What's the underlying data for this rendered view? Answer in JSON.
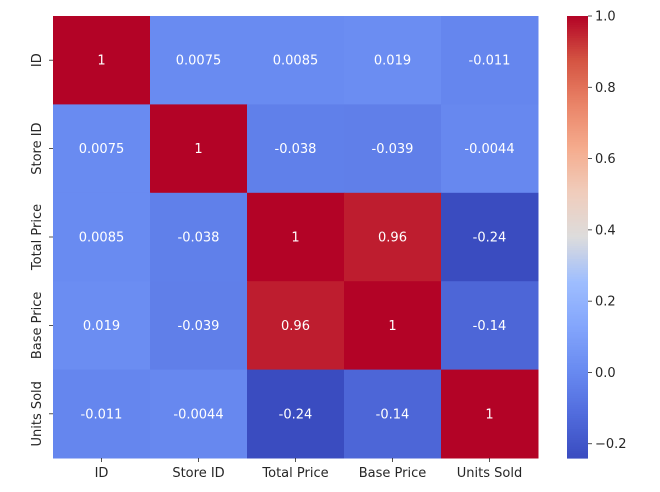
{
  "chart_data": {
    "type": "heatmap",
    "labels": [
      "ID",
      "Store ID",
      "Total Price",
      "Base Price",
      "Units Sold"
    ],
    "matrix": [
      [
        1,
        0.0075,
        0.0085,
        0.019,
        -0.011
      ],
      [
        0.0075,
        1,
        -0.038,
        -0.039,
        -0.0044
      ],
      [
        0.0085,
        -0.038,
        1,
        0.96,
        -0.24
      ],
      [
        0.019,
        -0.039,
        0.96,
        1,
        -0.14
      ],
      [
        -0.011,
        -0.0044,
        -0.24,
        -0.14,
        1
      ]
    ],
    "cell_text": [
      [
        "1",
        "0.0075",
        "0.0085",
        "0.019",
        "-0.011"
      ],
      [
        "0.0075",
        "1",
        "-0.038",
        "-0.039",
        "-0.0044"
      ],
      [
        "0.0085",
        "-0.038",
        "1",
        "0.96",
        "-0.24"
      ],
      [
        "0.019",
        "-0.039",
        "0.96",
        "1",
        "-0.14"
      ],
      [
        "-0.011",
        "-0.0044",
        "-0.24",
        "-0.14",
        "1"
      ]
    ],
    "colormap": "coolwarm",
    "colorbar": {
      "range": [
        -0.24,
        1.0
      ],
      "ticks": [
        -0.2,
        0.0,
        0.2,
        0.4,
        0.6,
        0.8,
        1.0
      ],
      "tick_labels": [
        "−0.2",
        "0.0",
        "0.2",
        "0.4",
        "0.6",
        "0.8",
        "1.0"
      ]
    },
    "colors": {
      "low": "#3b4cc0",
      "mid": "#dddddd",
      "high": "#b40426",
      "text_light": "#ffffff",
      "text_dark": "#262626"
    }
  }
}
